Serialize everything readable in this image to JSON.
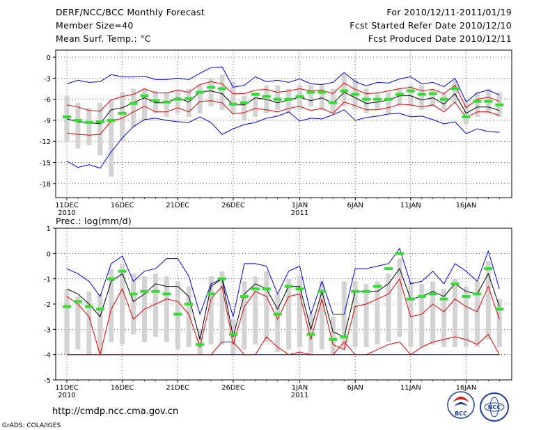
{
  "header": {
    "title": "DERF/NCC/BCC Monthly Forecast",
    "member_size": "Member Size=40",
    "variable": "Mean Surf. Temp.: °C",
    "forecast_period": "For 2010/12/11-2011/01/19",
    "started_refer": "Fcst Started Refer Date 2010/12/10",
    "produced": "Fcst Produced Date 2010/12/11"
  },
  "footer": {
    "url": "http://cmdp.ncc.cma.gov.cn",
    "credit": "GrADS: COLA/IGES",
    "logo_bcc": "BCC",
    "logo_ncc": "NCC"
  },
  "colors": {
    "ensemble_bar": "#d3d3d3",
    "median": "#33dd33",
    "mean": "#000000",
    "spread": "#e00000",
    "extreme": "#0000e0",
    "grid": "#000000"
  },
  "chart_data": [
    {
      "type": "line",
      "title": "Mean Surf. Temp.: °C",
      "ylim": [
        -20,
        1
      ],
      "yticks": [
        0,
        -3,
        -6,
        -9,
        -12,
        -15,
        -18
      ],
      "ytick_labels": [
        "0",
        "-3",
        "-6",
        "-9",
        "-12",
        "-15",
        "-18"
      ],
      "xticks": [
        {
          "day": 0,
          "label": "11DEC",
          "sub": "2010"
        },
        {
          "day": 5,
          "label": "16DEC",
          "sub": ""
        },
        {
          "day": 10,
          "label": "21DEC",
          "sub": ""
        },
        {
          "day": 15,
          "label": "26DEC",
          "sub": ""
        },
        {
          "day": 21,
          "label": "1JAN",
          "sub": "2011"
        },
        {
          "day": 26,
          "label": "6JAN",
          "sub": ""
        },
        {
          "day": 31,
          "label": "11JAN",
          "sub": ""
        },
        {
          "day": 36,
          "label": "16JAN",
          "sub": ""
        }
      ],
      "x": [
        0,
        1,
        2,
        3,
        4,
        5,
        6,
        7,
        8,
        9,
        10,
        11,
        12,
        13,
        14,
        15,
        16,
        17,
        18,
        19,
        20,
        21,
        22,
        23,
        24,
        25,
        26,
        27,
        28,
        29,
        30,
        31,
        32,
        33,
        34,
        35,
        36,
        37,
        38,
        39
      ],
      "series": [
        {
          "name": "box_top",
          "values": [
            -5.5,
            -6.5,
            -7.2,
            -6.5,
            -6,
            -5,
            -4.5,
            -4.5,
            -4.8,
            -5,
            -4.8,
            -4.5,
            -4,
            -3,
            -2.5,
            -3.5,
            -5.5,
            -5,
            -4,
            -4,
            -4.5,
            -4,
            -4,
            -4,
            -4.5,
            -2.5,
            -3,
            -4.5,
            -5,
            -5,
            -4.5,
            -4,
            -4,
            -4.5,
            -5,
            -3.3,
            -6.5,
            -5,
            -4.5,
            -5
          ]
        },
        {
          "name": "box_bottom",
          "values": [
            -12,
            -13,
            -12.5,
            -14,
            -17,
            -12,
            -10,
            -9,
            -8,
            -8.5,
            -8,
            -8.5,
            -8,
            -7,
            -7.5,
            -8,
            -9,
            -8.5,
            -8,
            -7.5,
            -8,
            -7.5,
            -7,
            -7.5,
            -8,
            -7,
            -7.5,
            -8,
            -7.5,
            -8,
            -7,
            -7,
            -7.5,
            -7,
            -7.5,
            -6.5,
            -9.5,
            -8.5,
            -8,
            -8.5
          ]
        },
        {
          "name": "max",
          "values": [
            -3.8,
            -3.3,
            -3.6,
            -3.5,
            -2.5,
            -2.8,
            -2.8,
            -2.7,
            -3.2,
            -3.2,
            -3,
            -3.2,
            -2.3,
            -1.5,
            -1.4,
            -4.3,
            -4,
            -2.8,
            -3.5,
            -3.3,
            -3.6,
            -3.1,
            -3.8,
            -3.9,
            -3.6,
            -2.2,
            -3.5,
            -4.1,
            -3.6,
            -3.7,
            -3.1,
            -2.8,
            -3.8,
            -3.6,
            -4.2,
            -3,
            -6.4,
            -5.1,
            -4.7,
            -5.4
          ]
        },
        {
          "name": "upper",
          "values": [
            -6.8,
            -7.1,
            -7.6,
            -7.7,
            -6.1,
            -5.6,
            -5.3,
            -4.5,
            -5.1,
            -5.1,
            -4.7,
            -5,
            -3.9,
            -3.5,
            -3.8,
            -5.2,
            -5.2,
            -4.7,
            -4.6,
            -5,
            -4.8,
            -4.5,
            -4.8,
            -4.7,
            -5.2,
            -3.7,
            -4.6,
            -5.2,
            -5.1,
            -4.8,
            -4.5,
            -4.3,
            -4.8,
            -4.6,
            -5.2,
            -4,
            -7.2,
            -6,
            -5.7,
            -6.3
          ]
        },
        {
          "name": "mean",
          "values": [
            -8.8,
            -9.2,
            -9.3,
            -9.5,
            -7.5,
            -7.2,
            -6.5,
            -5.8,
            -6.5,
            -6.5,
            -5.8,
            -6.4,
            -4.9,
            -4.8,
            -5.2,
            -6.8,
            -6.8,
            -5.8,
            -6,
            -6.5,
            -6.1,
            -5.7,
            -6.2,
            -5.8,
            -6.6,
            -5,
            -5.8,
            -6.6,
            -6.4,
            -6.1,
            -5.5,
            -5.5,
            -6.1,
            -5.8,
            -6.7,
            -5.2,
            -8,
            -7.1,
            -7.1,
            -7.6
          ]
        },
        {
          "name": "lower",
          "values": [
            -10.8,
            -11,
            -11.1,
            -11,
            -9.1,
            -8.7,
            -7.8,
            -7,
            -7.8,
            -7.8,
            -7.2,
            -7.8,
            -6.3,
            -6.2,
            -6.5,
            -8.1,
            -7.9,
            -7.3,
            -7.5,
            -7.8,
            -7.3,
            -7,
            -7.6,
            -7.3,
            -8,
            -6.4,
            -6.9,
            -7.5,
            -7.5,
            -7.2,
            -6.7,
            -6.8,
            -7.1,
            -6.8,
            -7.8,
            -6.4,
            -8.6,
            -7.8,
            -7.8,
            -8.3
          ]
        },
        {
          "name": "min",
          "values": [
            -14.8,
            -15.7,
            -15.3,
            -15.8,
            -13.5,
            -11.5,
            -9.9,
            -8.9,
            -8.7,
            -9,
            -9.2,
            -9.3,
            -8.5,
            -9.3,
            -11,
            -10.2,
            -9.6,
            -9.3,
            -8.7,
            -8.4,
            -7.8,
            -9.1,
            -8.7,
            -8.8,
            -8.2,
            -7.5,
            -9,
            -8.6,
            -8.4,
            -8.1,
            -8,
            -8.5,
            -8.4,
            -8.9,
            -9.5,
            -9.2,
            -10.9,
            -10.2,
            -10.6,
            -10.7
          ]
        },
        {
          "name": "median",
          "values": [
            -8.5,
            -9,
            -9.3,
            -9.2,
            -9,
            -8,
            -6.6,
            -5.5,
            -6.2,
            -6.4,
            -6,
            -5.9,
            -5,
            -4.3,
            -4.5,
            -6.7,
            -6.5,
            -5.3,
            -5.6,
            -6,
            -6,
            -5.6,
            -5,
            -5,
            -6.5,
            -4.8,
            -5.3,
            -6,
            -6,
            -6,
            -5.3,
            -4.8,
            -5.3,
            -5.2,
            -6,
            -4.5,
            -8.5,
            -6.3,
            -6.3,
            -6.8
          ]
        }
      ]
    },
    {
      "type": "line",
      "title": "Prec.: log(mm/d)",
      "ylim": [
        -5,
        1
      ],
      "yticks": [
        1,
        0,
        -1,
        -2,
        -3,
        -4,
        -5
      ],
      "ytick_labels": [
        "1",
        "0",
        "-1",
        "-2",
        "-3",
        "-4",
        "-5"
      ],
      "xticks": [
        {
          "day": 0,
          "label": "11DEC",
          "sub": "2010"
        },
        {
          "day": 5,
          "label": "16DEC",
          "sub": ""
        },
        {
          "day": 10,
          "label": "21DEC",
          "sub": ""
        },
        {
          "day": 15,
          "label": "26DEC",
          "sub": ""
        },
        {
          "day": 21,
          "label": "1JAN",
          "sub": "2011"
        },
        {
          "day": 26,
          "label": "6JAN",
          "sub": ""
        },
        {
          "day": 31,
          "label": "11JAN",
          "sub": ""
        },
        {
          "day": 36,
          "label": "16JAN",
          "sub": ""
        }
      ],
      "x": [
        0,
        1,
        2,
        3,
        4,
        5,
        6,
        7,
        8,
        9,
        10,
        11,
        12,
        13,
        14,
        15,
        16,
        17,
        18,
        19,
        20,
        21,
        22,
        23,
        24,
        25,
        26,
        27,
        28,
        29,
        30,
        31,
        32,
        33,
        34,
        35,
        36,
        37,
        38,
        39
      ],
      "series": [
        {
          "name": "box_top",
          "values": [
            -1.4,
            -1.7,
            -1.5,
            -1.6,
            -0.6,
            -0.4,
            -0.8,
            -0.9,
            -0.8,
            -0.9,
            -1.1,
            -1.3,
            -3,
            -0.9,
            -0.7,
            -2.6,
            -1.1,
            -0.9,
            -0.7,
            -1.6,
            -1,
            -0.9,
            -2.4,
            -1.1,
            -2.5,
            -1.1,
            -1.1,
            -1.2,
            -1.1,
            -0.8,
            -0.2,
            -1.1,
            -1.2,
            -1.1,
            -1.4,
            -1,
            -1.3,
            -1.1,
            -0.3,
            -1.8
          ]
        },
        {
          "name": "box_bottom",
          "values": [
            -4,
            -3.8,
            -4,
            -4,
            -3.5,
            -3.6,
            -3.2,
            -3.5,
            -3.3,
            -3.5,
            -3.8,
            -3.7,
            -4,
            -3.6,
            -3.6,
            -4,
            -3.8,
            -3.6,
            -3.5,
            -3.9,
            -3.8,
            -3.7,
            -4,
            -3.8,
            -4,
            -3.8,
            -3.7,
            -3.7,
            -3.6,
            -3.5,
            -3.3,
            -3.7,
            -3.7,
            -3.6,
            -3.7,
            -3.7,
            -3.7,
            -3.7,
            -3.4,
            -3.7
          ]
        },
        {
          "name": "max",
          "values": [
            -0.6,
            -0.8,
            -1.1,
            -1.7,
            -0.4,
            -0.1,
            -1.1,
            -0.7,
            -0.6,
            -0.2,
            -0.2,
            -0.9,
            -2.4,
            -1.2,
            -1,
            -2.5,
            -0.4,
            -0.4,
            -0.5,
            -1.6,
            -0.7,
            -0.5,
            -2.4,
            -1.1,
            -2.4,
            -2.4,
            -0.6,
            -0.6,
            -0.5,
            -0.4,
            0.2,
            -1.2,
            -1.1,
            -0.7,
            -1.2,
            -0.4,
            -0.7,
            -1.1,
            0.1,
            -1.4
          ]
        },
        {
          "name": "mean",
          "values": [
            -1.4,
            -1.6,
            -2,
            -2.5,
            -1.1,
            -0.8,
            -1.9,
            -1.6,
            -1.2,
            -1.3,
            -1.3,
            -1.7,
            -3.4,
            -1.3,
            -1,
            -3.3,
            -1.6,
            -1.2,
            -1.4,
            -2.2,
            -1.3,
            -1.3,
            -3,
            -1.5,
            -3.1,
            -3.3,
            -1.5,
            -1.5,
            -1.5,
            -1.2,
            -0.6,
            -1.8,
            -1.7,
            -1.5,
            -1.7,
            -1.2,
            -1.5,
            -1.6,
            -0.8,
            -2.1
          ]
        },
        {
          "name": "upper",
          "values": [
            -1.7,
            -2,
            -2.5,
            -4,
            -2.2,
            -1.4,
            -2.6,
            -2.2,
            -2,
            -1.8,
            -1.9,
            -2.4,
            -3.7,
            -1.8,
            -1.3,
            -3.6,
            -2.1,
            -1.5,
            -1.7,
            -2.6,
            -1.7,
            -1.6,
            -3.4,
            -1.8,
            -3.6,
            -3.8,
            -2.1,
            -2,
            -1.8,
            -1.6,
            -1,
            -2.5,
            -2.4,
            -2,
            -2.3,
            -1.8,
            -2.1,
            -2.3,
            -1.3,
            -2.6
          ]
        },
        {
          "name": "lower",
          "values": [
            -4,
            -4,
            -4,
            -4,
            -4,
            -4,
            -4,
            -4,
            -4,
            -4,
            -4,
            -4,
            -4,
            -4,
            -3.5,
            -3.5,
            -4,
            -4,
            -3.3,
            -3.7,
            -4,
            -3.9,
            -4,
            -4,
            -4,
            -3.5,
            -4,
            -4,
            -3.8,
            -3.6,
            -3.5,
            -4,
            -3.7,
            -3.5,
            -3.4,
            -3.3,
            -3.4,
            -3.6,
            -3.2,
            -4
          ]
        },
        {
          "name": "min",
          "values": [
            -4,
            -4,
            -4,
            -4,
            -4,
            -4,
            -4,
            -4,
            -4,
            -4,
            -4,
            -4,
            -4,
            -4,
            -4,
            -4,
            -4,
            -4,
            -4,
            -4,
            -4,
            -4,
            -4,
            -4,
            -4,
            -4,
            -4,
            -4,
            -4,
            -4,
            -4,
            -4,
            -4,
            -4,
            -4,
            -4,
            -4,
            -4,
            -4,
            -4
          ]
        },
        {
          "name": "median",
          "values": [
            -2.1,
            -1.9,
            -2.1,
            -2.2,
            -1,
            -0.7,
            -1.6,
            -1.5,
            -1.5,
            -1.6,
            -2.4,
            -2,
            -3.6,
            -1.6,
            -1,
            -3.2,
            -1.7,
            -1.4,
            -1.4,
            -2.4,
            -1.3,
            -1.4,
            -3.2,
            -1.5,
            -3.4,
            -3.3,
            -1.5,
            -1.5,
            -1.3,
            -0.6,
            0,
            -1.8,
            -1.7,
            -1.6,
            -1.8,
            -1.2,
            -1.7,
            -1.6,
            -0.6,
            -2.2
          ]
        }
      ]
    }
  ]
}
